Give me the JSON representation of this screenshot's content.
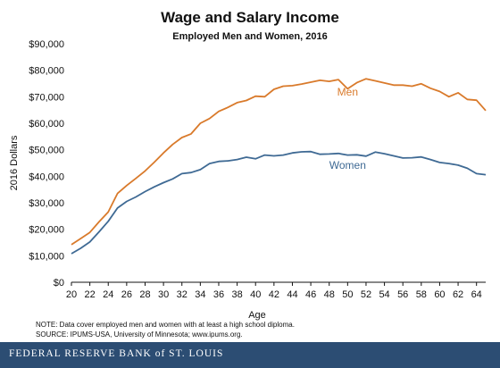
{
  "header": {
    "title": "Wage and Salary Income",
    "subtitle": "Employed Men and Women, 2016"
  },
  "footer": {
    "note": "NOTE: Data cover employed men and women with at least a high school diploma.",
    "source": "SOURCE: IPUMS-USA,  University of Minnesota; www.ipums.org.",
    "brand": "FEDERAL RESERVE BANK of ST. LOUIS"
  },
  "colors": {
    "men": "#d97a2b",
    "women": "#3f6a94",
    "footer_bg": "#2c4d73"
  },
  "chart_data": {
    "type": "line",
    "title": "Wage and Salary Income",
    "subtitle": "Employed Men and Women, 2016",
    "xlabel": "Age",
    "ylabel": "2016 Dollars",
    "xlim": [
      20,
      65
    ],
    "ylim": [
      0,
      90000
    ],
    "x_ticks": [
      20,
      22,
      24,
      26,
      28,
      30,
      32,
      34,
      36,
      38,
      40,
      42,
      44,
      46,
      48,
      50,
      52,
      54,
      56,
      58,
      60,
      62,
      64
    ],
    "y_ticks": [
      0,
      10000,
      20000,
      30000,
      40000,
      50000,
      60000,
      70000,
      80000,
      90000
    ],
    "y_tick_labels": [
      "$0",
      "$10,000",
      "$20,000",
      "$30,000",
      "$40,000",
      "$50,000",
      "$60,000",
      "$70,000",
      "$80,000",
      "$90,000"
    ],
    "grid": false,
    "legend": "inline labels",
    "x": [
      20,
      21,
      22,
      23,
      24,
      25,
      26,
      27,
      28,
      29,
      30,
      31,
      32,
      33,
      34,
      35,
      36,
      37,
      38,
      39,
      40,
      41,
      42,
      43,
      44,
      45,
      46,
      47,
      48,
      49,
      50,
      51,
      52,
      53,
      54,
      55,
      56,
      57,
      58,
      59,
      60,
      61,
      62,
      63,
      64,
      65
    ],
    "series": [
      {
        "name": "Men",
        "values": [
          14200,
          16500,
          18800,
          22800,
          26500,
          33500,
          36500,
          39200,
          42000,
          45300,
          48800,
          52000,
          54600,
          56000,
          60000,
          61800,
          64500,
          66000,
          67800,
          68600,
          70200,
          70000,
          72800,
          74000,
          74200,
          74800,
          75500,
          76200,
          75800,
          76500,
          73000,
          75300,
          76800,
          76000,
          75200,
          74400,
          74400,
          74000,
          74900,
          73200,
          72000,
          70000,
          71500,
          69000,
          68700,
          64800
        ],
        "label_at": [
          50,
          70500
        ]
      },
      {
        "name": "Women",
        "values": [
          10800,
          12800,
          15200,
          19000,
          23000,
          28000,
          30500,
          32200,
          34200,
          36000,
          37600,
          39000,
          41000,
          41400,
          42500,
          44800,
          45600,
          45800,
          46300,
          47200,
          46600,
          48000,
          47700,
          48000,
          48800,
          49200,
          49300,
          48300,
          48400,
          48600,
          48000,
          48100,
          47600,
          49100,
          48500,
          47700,
          46900,
          47000,
          47300,
          46300,
          45200,
          44800,
          44200,
          43000,
          41000,
          40600
        ],
        "label_at": [
          50,
          42800
        ]
      }
    ]
  }
}
